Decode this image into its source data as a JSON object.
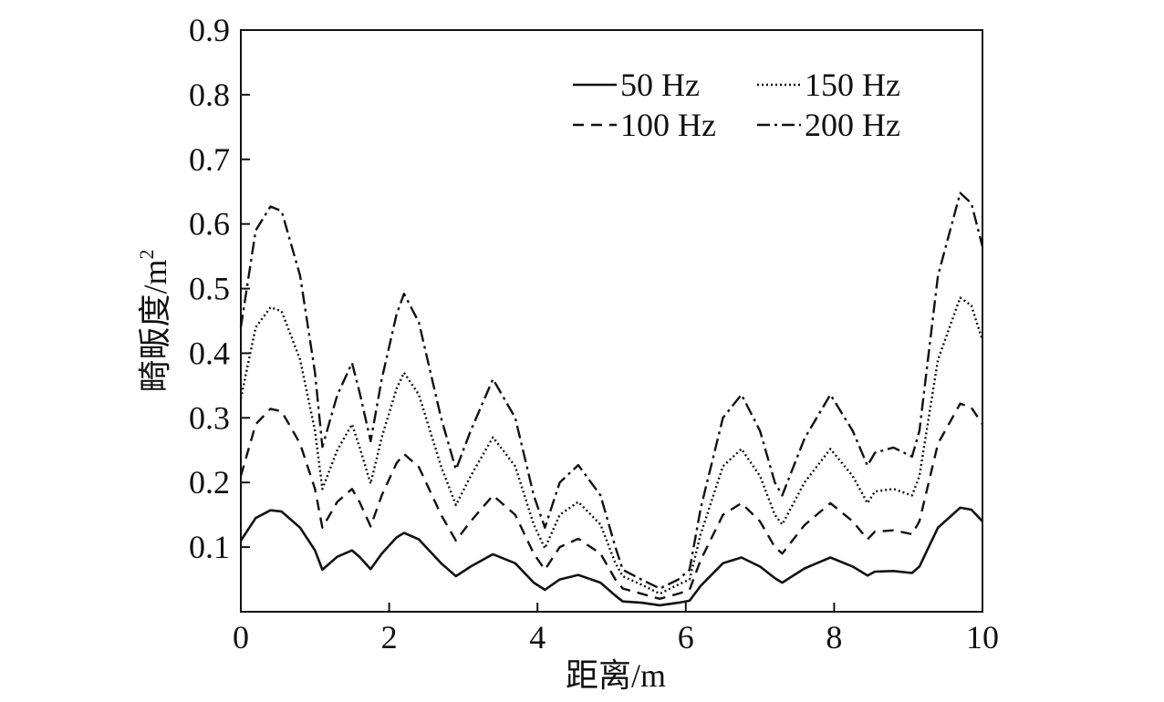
{
  "chart_data": {
    "type": "line",
    "xlabel": "距离/m",
    "ylabel_text": "畸畈度/m",
    "ylabel_sup": "2",
    "xlim": [
      0,
      10
    ],
    "ylim": [
      0,
      0.9
    ],
    "xticks": [
      0,
      2,
      4,
      6,
      8,
      10
    ],
    "xtick_labels": [
      "0",
      "2",
      "4",
      "6",
      "8",
      "10"
    ],
    "yticks": [
      0.1,
      0.2,
      0.3,
      0.4,
      0.5,
      0.6,
      0.7,
      0.8,
      0.9
    ],
    "ytick_labels": [
      "0.1",
      "0.2",
      "0.3",
      "0.4",
      "0.5",
      "0.6",
      "0.7",
      "0.8",
      "0.9"
    ],
    "grid": false,
    "legend": "top-right",
    "series": [
      {
        "name": "50 Hz",
        "dash": "solid",
        "x": [
          0,
          0.2,
          0.4,
          0.55,
          0.8,
          1.0,
          1.1,
          1.3,
          1.5,
          1.6,
          1.75,
          1.9,
          2.1,
          2.2,
          2.4,
          2.7,
          2.9,
          3.1,
          3.4,
          3.7,
          3.95,
          4.1,
          4.3,
          4.55,
          4.85,
          5.05,
          5.15,
          5.4,
          5.65,
          5.9,
          6.05,
          6.2,
          6.5,
          6.75,
          7.0,
          7.2,
          7.3,
          7.6,
          7.95,
          8.25,
          8.45,
          8.55,
          8.8,
          9.05,
          9.15,
          9.4,
          9.7,
          9.85,
          10.0
        ],
        "values": [
          0.11,
          0.145,
          0.157,
          0.155,
          0.13,
          0.095,
          0.065,
          0.085,
          0.095,
          0.085,
          0.066,
          0.09,
          0.115,
          0.122,
          0.112,
          0.075,
          0.055,
          0.07,
          0.089,
          0.075,
          0.045,
          0.034,
          0.05,
          0.057,
          0.045,
          0.025,
          0.016,
          0.014,
          0.01,
          0.014,
          0.017,
          0.04,
          0.075,
          0.084,
          0.07,
          0.052,
          0.045,
          0.067,
          0.084,
          0.07,
          0.056,
          0.062,
          0.063,
          0.06,
          0.07,
          0.13,
          0.161,
          0.158,
          0.14
        ]
      },
      {
        "name": "100 Hz",
        "dash": "dashed",
        "x": [
          0,
          0.2,
          0.4,
          0.55,
          0.8,
          1.0,
          1.1,
          1.3,
          1.5,
          1.6,
          1.75,
          1.9,
          2.1,
          2.2,
          2.4,
          2.7,
          2.9,
          3.1,
          3.4,
          3.7,
          3.95,
          4.1,
          4.3,
          4.55,
          4.85,
          5.05,
          5.15,
          5.4,
          5.65,
          5.9,
          6.05,
          6.2,
          6.5,
          6.75,
          7.0,
          7.2,
          7.3,
          7.6,
          7.95,
          8.25,
          8.45,
          8.55,
          8.8,
          9.05,
          9.15,
          9.4,
          9.7,
          9.85,
          10.0
        ],
        "values": [
          0.21,
          0.29,
          0.314,
          0.31,
          0.26,
          0.19,
          0.13,
          0.17,
          0.19,
          0.17,
          0.132,
          0.18,
          0.23,
          0.244,
          0.224,
          0.15,
          0.11,
          0.14,
          0.18,
          0.15,
          0.09,
          0.065,
          0.1,
          0.113,
          0.09,
          0.05,
          0.036,
          0.028,
          0.02,
          0.028,
          0.034,
          0.08,
          0.15,
          0.168,
          0.14,
          0.1,
          0.09,
          0.134,
          0.168,
          0.14,
          0.112,
          0.124,
          0.126,
          0.12,
          0.14,
          0.26,
          0.322,
          0.316,
          0.29
        ]
      },
      {
        "name": "150 Hz",
        "dash": "dotted",
        "x": [
          0,
          0.2,
          0.4,
          0.55,
          0.8,
          1.0,
          1.1,
          1.3,
          1.5,
          1.6,
          1.75,
          1.9,
          2.1,
          2.2,
          2.4,
          2.7,
          2.9,
          3.1,
          3.4,
          3.7,
          3.95,
          4.1,
          4.3,
          4.55,
          4.85,
          5.05,
          5.15,
          5.4,
          5.65,
          5.9,
          6.05,
          6.2,
          6.5,
          6.75,
          7.0,
          7.2,
          7.3,
          7.6,
          7.95,
          8.25,
          8.45,
          8.55,
          8.8,
          9.05,
          9.15,
          9.4,
          9.7,
          9.85,
          10.0
        ],
        "values": [
          0.33,
          0.44,
          0.471,
          0.465,
          0.39,
          0.28,
          0.19,
          0.25,
          0.29,
          0.255,
          0.198,
          0.27,
          0.345,
          0.37,
          0.336,
          0.225,
          0.165,
          0.21,
          0.27,
          0.225,
          0.135,
          0.098,
          0.15,
          0.17,
          0.135,
          0.075,
          0.055,
          0.042,
          0.028,
          0.042,
          0.05,
          0.12,
          0.225,
          0.252,
          0.21,
          0.15,
          0.135,
          0.2,
          0.252,
          0.21,
          0.168,
          0.186,
          0.19,
          0.18,
          0.21,
          0.39,
          0.486,
          0.474,
          0.42
        ]
      },
      {
        "name": "200 Hz",
        "dash": "dashdot",
        "x": [
          0,
          0.2,
          0.4,
          0.55,
          0.8,
          1.0,
          1.1,
          1.3,
          1.5,
          1.6,
          1.75,
          1.9,
          2.1,
          2.2,
          2.4,
          2.7,
          2.9,
          3.1,
          3.4,
          3.7,
          3.95,
          4.1,
          4.3,
          4.55,
          4.85,
          5.05,
          5.15,
          5.4,
          5.65,
          5.9,
          6.05,
          6.2,
          6.5,
          6.75,
          7.0,
          7.2,
          7.3,
          7.6,
          7.95,
          8.25,
          8.45,
          8.55,
          8.8,
          9.05,
          9.15,
          9.4,
          9.7,
          9.85,
          10.0
        ],
        "values": [
          0.44,
          0.59,
          0.627,
          0.62,
          0.52,
          0.37,
          0.255,
          0.335,
          0.385,
          0.34,
          0.264,
          0.36,
          0.46,
          0.492,
          0.448,
          0.3,
          0.22,
          0.28,
          0.36,
          0.3,
          0.18,
          0.13,
          0.2,
          0.227,
          0.18,
          0.1,
          0.065,
          0.05,
          0.036,
          0.05,
          0.065,
          0.16,
          0.3,
          0.336,
          0.28,
          0.2,
          0.18,
          0.268,
          0.336,
          0.28,
          0.226,
          0.246,
          0.254,
          0.24,
          0.28,
          0.52,
          0.648,
          0.632,
          0.565
        ]
      }
    ]
  }
}
